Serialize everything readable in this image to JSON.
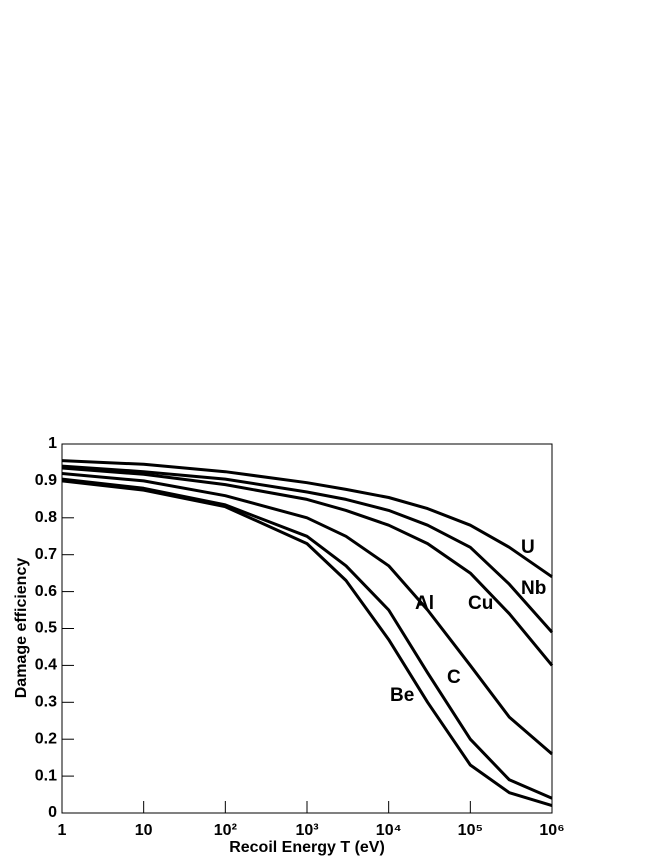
{
  "chart_data": {
    "type": "line",
    "x_label": "Recoil Energy T (eV)",
    "y_label": "Damage efficiency",
    "log_x": true,
    "x": [
      1,
      10,
      100,
      1000,
      3000,
      10000,
      30000,
      100000,
      300000,
      1000000
    ],
    "series": [
      {
        "name": "U",
        "color": "#000000",
        "values": [
          0.955,
          0.945,
          0.925,
          0.895,
          0.877,
          0.855,
          0.825,
          0.78,
          0.72,
          0.64
        ]
      },
      {
        "name": "Nb",
        "color": "#000000",
        "values": [
          0.94,
          0.925,
          0.905,
          0.87,
          0.85,
          0.82,
          0.78,
          0.72,
          0.62,
          0.49
        ]
      },
      {
        "name": "Cu",
        "color": "#000000",
        "values": [
          0.935,
          0.918,
          0.89,
          0.85,
          0.82,
          0.78,
          0.73,
          0.65,
          0.54,
          0.4
        ]
      },
      {
        "name": "Al",
        "color": "#000000",
        "values": [
          0.92,
          0.9,
          0.86,
          0.8,
          0.75,
          0.67,
          0.55,
          0.4,
          0.26,
          0.16
        ]
      },
      {
        "name": "C",
        "color": "#000000",
        "values": [
          0.905,
          0.88,
          0.835,
          0.75,
          0.67,
          0.55,
          0.38,
          0.2,
          0.09,
          0.04
        ]
      },
      {
        "name": "Be",
        "color": "#000000",
        "values": [
          0.9,
          0.875,
          0.83,
          0.73,
          0.63,
          0.47,
          0.3,
          0.13,
          0.055,
          0.02
        ]
      }
    ],
    "xlim": [
      1,
      1000000
    ],
    "xticks": [
      1,
      10,
      {
        "value": 100,
        "label": "10²"
      },
      {
        "value": 1000,
        "label": "10³"
      },
      {
        "value": 10000,
        "label": "10⁴"
      },
      {
        "value": 100000,
        "label": "10⁵"
      },
      {
        "value": 1000000,
        "label": "10⁶"
      }
    ],
    "ylim": [
      0,
      1
    ],
    "yticks": [
      0,
      0.1,
      0.2,
      0.3,
      0.4,
      0.5,
      0.6,
      0.7,
      0.8,
      0.9,
      1
    ]
  }
}
